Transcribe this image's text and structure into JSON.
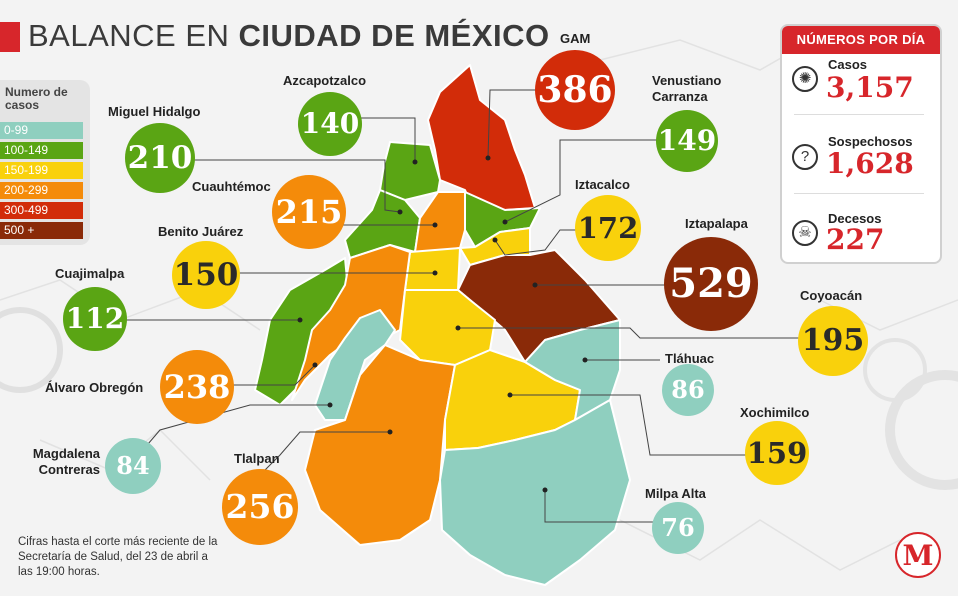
{
  "title": {
    "regular": "BALANCE EN ",
    "bold": "CIUDAD DE MÉXICO"
  },
  "legend": {
    "title": "Numero de casos",
    "items": [
      {
        "label": "0-99",
        "color": "#8fcfbf"
      },
      {
        "label": "100-149",
        "color": "#5aa514"
      },
      {
        "label": "150-199",
        "color": "#f9d10c"
      },
      {
        "label": "200-299",
        "color": "#f48b0a"
      },
      {
        "label": "300-499",
        "color": "#d22c09"
      },
      {
        "label": "500 +",
        "color": "#8a2a08"
      }
    ]
  },
  "daily_numbers": {
    "header": "NÚMEROS POR DÍA",
    "items": [
      {
        "label": "Casos",
        "value": "3,157",
        "icon": "virus-icon"
      },
      {
        "label": "Sospechosos",
        "value": "1,628",
        "icon": "question-icon"
      },
      {
        "label": "Decesos",
        "value": "227",
        "icon": "skull-icon"
      }
    ]
  },
  "municipalities": [
    {
      "name": "GAM",
      "cases": "386",
      "color": "#d22c09"
    },
    {
      "name": "Azcapotzalco",
      "cases": "140",
      "color": "#5aa514"
    },
    {
      "name": "Venustiano Carranza",
      "cases": "149",
      "color": "#5aa514"
    },
    {
      "name": "Miguel Hidalgo",
      "cases": "210",
      "color": "#f48b0a"
    },
    {
      "name": "Cuauhtémoc",
      "cases": "215",
      "color": "#f48b0a"
    },
    {
      "name": "Iztacalco",
      "cases": "172",
      "color": "#f9d10c"
    },
    {
      "name": "Benito Juárez",
      "cases": "150",
      "color": "#f9d10c"
    },
    {
      "name": "Iztapalapa",
      "cases": "529",
      "color": "#8a2a08"
    },
    {
      "name": "Cuajimalpa",
      "cases": "112",
      "color": "#5aa514"
    },
    {
      "name": "Coyoacán",
      "cases": "195",
      "color": "#f9d10c"
    },
    {
      "name": "Álvaro Obregón",
      "cases": "238",
      "color": "#f48b0a"
    },
    {
      "name": "Tláhuac",
      "cases": "86",
      "color": "#8fcfbf"
    },
    {
      "name": "Xochimilco",
      "cases": "159",
      "color": "#f9d10c"
    },
    {
      "name": "Magdalena Contreras",
      "cases": "84",
      "color": "#8fcfbf"
    },
    {
      "name": "Tlalpan",
      "cases": "256",
      "color": "#f48b0a"
    },
    {
      "name": "Milpa Alta",
      "cases": "76",
      "color": "#8fcfbf"
    }
  ],
  "footnote": "Cifras hasta el corte más reciente de la Secretaría de Salud, del 23 de abril a las 19:00 horas.",
  "logo_letter": "M"
}
